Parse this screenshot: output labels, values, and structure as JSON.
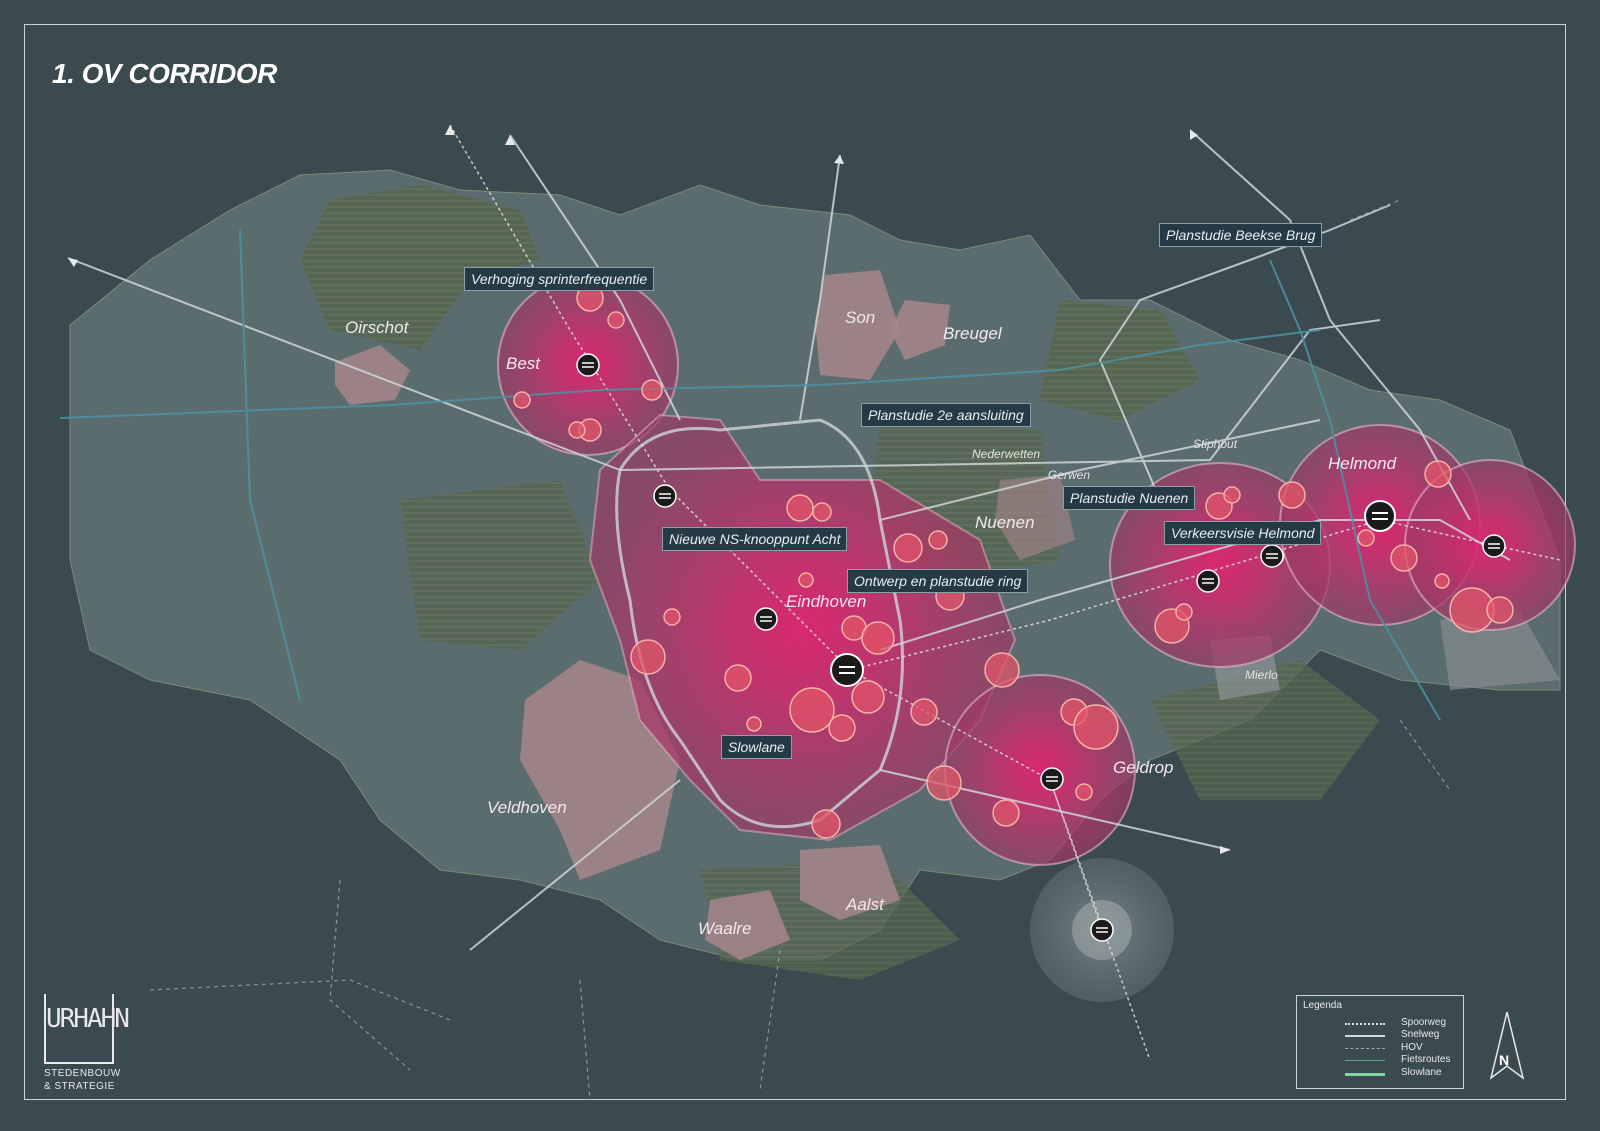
{
  "title": "1. OV CORRIDOR",
  "places": {
    "oirschot": "Oirschot",
    "best": "Best",
    "son": "Son",
    "breugel": "Breugel",
    "nederwetten": "Nederwetten",
    "gerwen": "Gerwen",
    "stiphout": "Stiphout",
    "helmond": "Helmond",
    "nuenen": "Nuenen",
    "eindhoven": "Eindhoven",
    "geldrop": "Geldrop",
    "mierlo": "Mierlo",
    "veldhoven": "Veldhoven",
    "aalst": "Aalst",
    "waalre": "Waalre"
  },
  "callouts": {
    "sprinter": "Verhoging sprinterfrequentie",
    "beekse_brug": "Planstudie Beekse Brug",
    "aansluiting": "Planstudie 2e aansluiting",
    "nuenen": "Planstudie Nuenen",
    "helmond": "Verkeersvisie Helmond",
    "acht": "Nieuwe NS-knooppunt Acht",
    "ring": "Ontwerp en planstudie ring",
    "slowlane": "Slowlane"
  },
  "legend": {
    "title": "Legenda",
    "items": [
      {
        "label": "Spoorweg",
        "color": "#dfe3e4"
      },
      {
        "label": "Snelweg",
        "color": "#cfd6d8"
      },
      {
        "label": "HOV",
        "color": "#9aa8ab"
      },
      {
        "label": "Fietsroutes",
        "color": "#5fa884"
      },
      {
        "label": "Slowlane",
        "color": "#7fd6a4"
      }
    ]
  },
  "logo": {
    "mark": "URHAHN",
    "line1": "STEDENBOUW",
    "line2": "& STRATEGIE"
  },
  "north_label": "N",
  "colors": {
    "background": "#3a4a4f",
    "municipality": "#5b6c6f",
    "built_area": "#a6868b",
    "influence_zone": "#c0366e",
    "station": "#1b1b1b"
  }
}
